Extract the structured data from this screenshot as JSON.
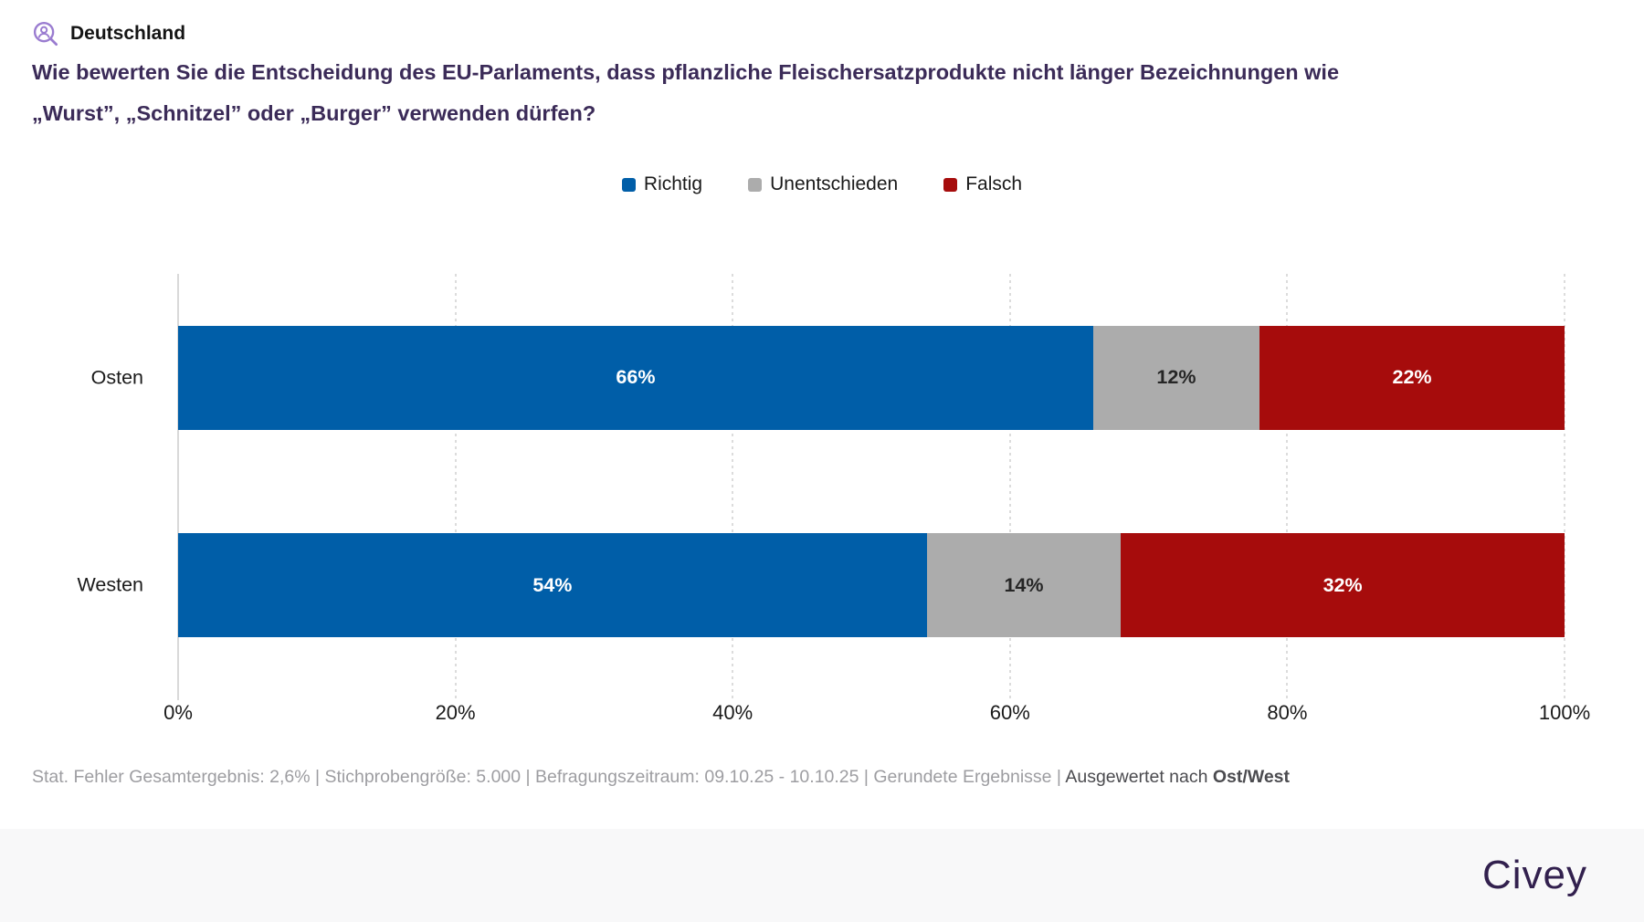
{
  "header": {
    "region_label": "Deutschland",
    "question_line1": "Wie bewerten Sie die Entscheidung des EU-Parlaments, dass pflanzliche Fleischersatzprodukte nicht länger Bezeichnungen wie",
    "question_line2": "„Wurst”, „Schnitzel” oder „Burger” verwenden dürfen?"
  },
  "legend": [
    {
      "label": "Richtig",
      "color": "#005ea8"
    },
    {
      "label": "Unentschieden",
      "color": "#acacac"
    },
    {
      "label": "Falsch",
      "color": "#a60c0c"
    }
  ],
  "chart_data": {
    "type": "bar",
    "orientation": "horizontal",
    "stacked": true,
    "categories": [
      "Osten",
      "Westen"
    ],
    "series": [
      {
        "name": "Richtig",
        "color": "#005ea8",
        "label_color": "#ffffff",
        "values": [
          66,
          54
        ]
      },
      {
        "name": "Unentschieden",
        "color": "#acacac",
        "label_color": "#262626",
        "values": [
          12,
          14
        ]
      },
      {
        "name": "Falsch",
        "color": "#a60c0c",
        "label_color": "#ffffff",
        "values": [
          22,
          32
        ]
      }
    ],
    "value_suffix": "%",
    "xlim": [
      0,
      100
    ],
    "x_ticks": [
      "0%",
      "20%",
      "40%",
      "60%",
      "80%",
      "100%"
    ],
    "grid": "vertical-dotted",
    "legend_position": "top-center"
  },
  "footnote": {
    "muted_parts": [
      "Stat. Fehler Gesamtergebnis: 2,6%",
      "Stichprobengröße: 5.000",
      "Befragungszeitraum: 09.10.25 - 10.10.25",
      "Gerundete Ergebnisse"
    ],
    "separator": " | ",
    "evaluated_prefix": "Ausgewertet nach ",
    "evaluated_bold": "Ost/West"
  },
  "brand": {
    "logo_text": "Civey"
  }
}
